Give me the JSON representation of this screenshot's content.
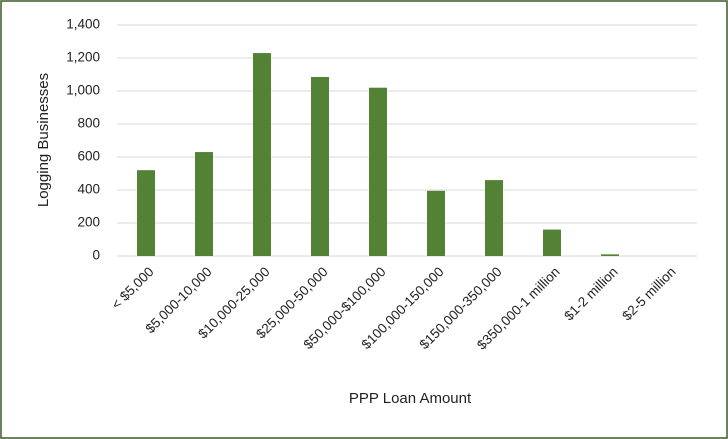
{
  "chart_data": {
    "type": "bar",
    "x_label": "PPP Loan Amount",
    "y_label": "Logging Businesses",
    "categories": [
      "< $5,000",
      "$5,000-10,000",
      "$10,000-25,000",
      "$25,000-50,000",
      "$50,000-$100,000",
      "$100,000-150,000",
      "$150,000-350,000",
      "$350,000-1 million",
      "$1-2 million",
      "$2-5 million"
    ],
    "values": [
      520,
      630,
      1230,
      1085,
      1020,
      395,
      460,
      160,
      10,
      0
    ],
    "color": "#548235",
    "ylim": [
      0,
      1400
    ],
    "yticks": [
      0,
      200,
      400,
      600,
      800,
      {
        "value": 1000,
        "label": "1,000"
      },
      {
        "value": 1200,
        "label": "1,200"
      },
      {
        "value": 1400,
        "label": "1,400"
      }
    ],
    "grid": true
  }
}
